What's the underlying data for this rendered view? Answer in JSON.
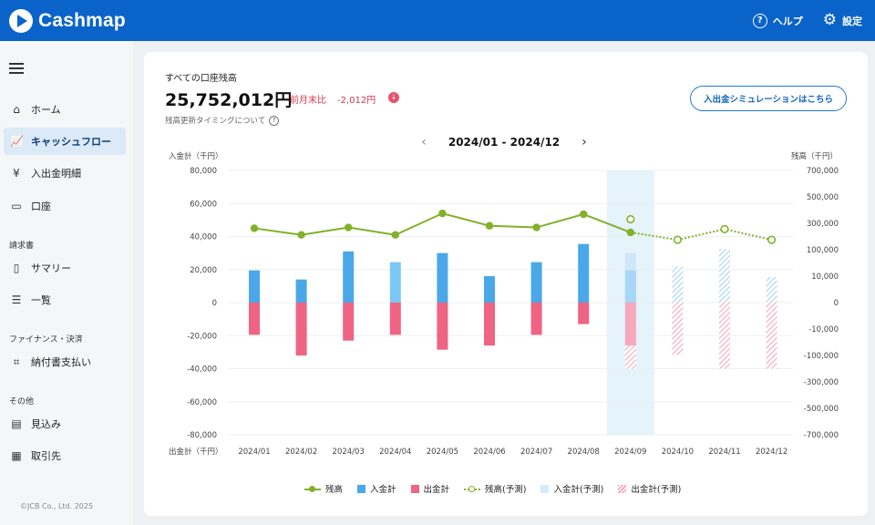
{
  "app": {
    "name": "Cashmap"
  },
  "header": {
    "help_label": "ヘルプ",
    "settings_label": "設定"
  },
  "sidebar": {
    "items": [
      {
        "label": "ホーム",
        "icon": "home-icon"
      },
      {
        "label": "キャッシュフロー",
        "icon": "chart-icon",
        "active": true
      },
      {
        "label": "入出金明細",
        "icon": "yen-icon"
      },
      {
        "label": "口座",
        "icon": "card-icon"
      },
      {
        "label": "サマリー",
        "icon": "document-icon"
      },
      {
        "label": "一覧",
        "icon": "list-icon"
      },
      {
        "label": "納付書支払い",
        "icon": "scan-icon"
      },
      {
        "label": "見込み",
        "icon": "forecast-icon"
      },
      {
        "label": "取引先",
        "icon": "building-icon"
      }
    ],
    "sections": [
      "請求書",
      "ファイナンス・決済",
      "その他"
    ],
    "copyright": "©JCB Co., Ltd. 2025"
  },
  "summary": {
    "title": "すべての口座残高",
    "balance": "25,752,012円",
    "diff_label": "前月末比",
    "diff_value": "-2,012円",
    "timing_link": "残高更新タイミングについて",
    "simulation_button": "入出金シミュレーションはこちら"
  },
  "period": {
    "label": "2024/01 - 2024/12"
  },
  "colors": {
    "income": "#4aa8e8",
    "income_light": "#7cc8f5",
    "expense": "#ef6482",
    "balance": "#82b12a",
    "forecast_highlight": "#e5f3fb"
  },
  "chart_data": {
    "type": "bar",
    "left_axis_label": "入金計（千円）",
    "left_bottom_label": "出金計（千円）",
    "right_axis_label": "残高（千円）",
    "left_ticks": [
      "80,000",
      "60,000",
      "40,000",
      "20,000",
      "0",
      "-20,000",
      "-40,000",
      "-60,000",
      "-80,000"
    ],
    "right_ticks": [
      "700,000",
      "500,000",
      "300,000",
      "100,000",
      "10,000",
      "0",
      "-10,000",
      "-100,000",
      "-300,000",
      "-500,000",
      "-700,000"
    ],
    "ylim_left": [
      -80000,
      80000
    ],
    "categories": [
      "2024/01",
      "2024/02",
      "2024/03",
      "2024/04",
      "2024/05",
      "2024/06",
      "2024/07",
      "2024/08",
      "2024/09",
      "2024/10",
      "2024/11",
      "2024/12"
    ],
    "forecast_start_index": 8,
    "series": [
      {
        "name": "入金計",
        "values": [
          19500,
          14000,
          31000,
          24500,
          30000,
          16000,
          24500,
          35500,
          19500,
          null,
          null,
          null
        ]
      },
      {
        "name": "出金計",
        "values": [
          -19500,
          -32000,
          -23000,
          -19500,
          -28500,
          -26000,
          -19500,
          -13000,
          -26000,
          null,
          null,
          null
        ]
      },
      {
        "name": "残高",
        "values": [
          45000,
          41000,
          45500,
          41000,
          54000,
          46500,
          45500,
          53500,
          42500,
          null,
          null,
          null
        ]
      },
      {
        "name": "入金計(予測)",
        "values": [
          null,
          null,
          null,
          null,
          null,
          null,
          null,
          null,
          30000,
          22000,
          32500,
          15500
        ]
      },
      {
        "name": "出金計(予測)",
        "values": [
          null,
          null,
          null,
          null,
          null,
          null,
          null,
          null,
          -40000,
          -31500,
          -40000,
          -40000
        ]
      },
      {
        "name": "残高(予測)",
        "values": [
          null,
          null,
          null,
          null,
          null,
          null,
          null,
          null,
          50500,
          38000,
          44500,
          38000
        ]
      }
    ],
    "grid": true,
    "legend": "bottom"
  }
}
